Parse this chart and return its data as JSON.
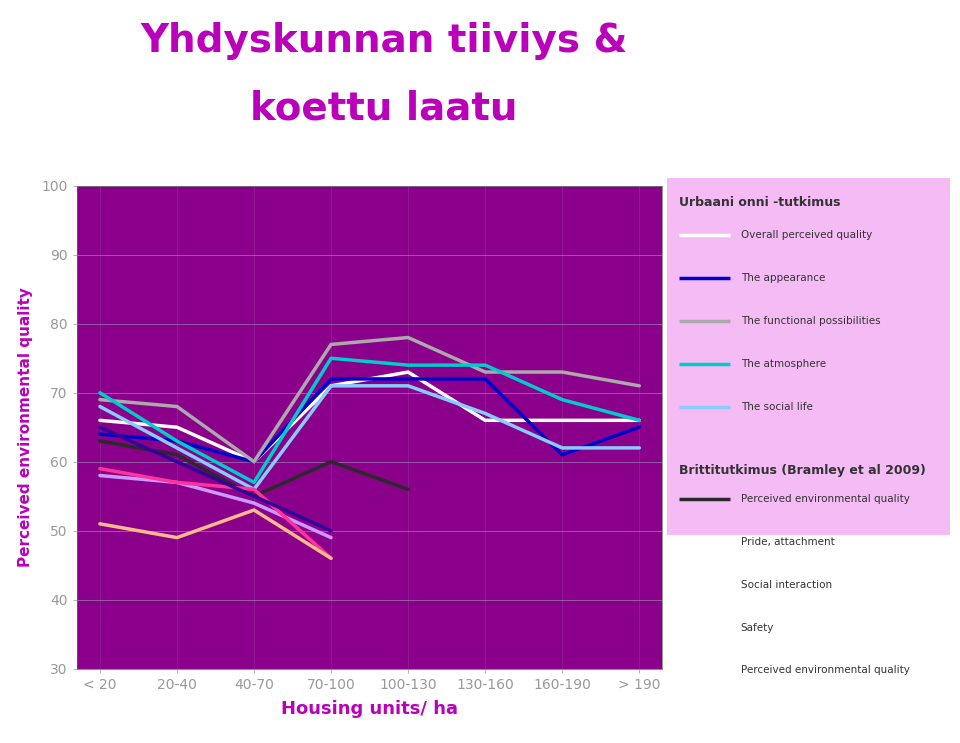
{
  "title_line1": "Yhdyskunnan tiiviys &",
  "title_line2": "koettu laatu",
  "title_color": "#bb00bb",
  "xlabel": "Housing units/ ha",
  "xlabel_color": "#bb00bb",
  "ylabel": "Perceived environmental quality",
  "ylabel_color": "#bb00bb",
  "bg_color": "#8b008b",
  "fig_bg_color": "#ffffff",
  "ylim": [
    30,
    100
  ],
  "yticks": [
    30,
    40,
    50,
    60,
    70,
    80,
    90,
    100
  ],
  "xtick_labels": [
    "< 20",
    "20-40",
    "40-70",
    "70-100",
    "100-130",
    "130-160",
    "160-190",
    "> 190"
  ],
  "grid_color": "#9999bb",
  "tick_label_color": "#cccccc",
  "series": [
    {
      "name": "Overall perceived quality",
      "color": "#ffffff",
      "linewidth": 2.5,
      "data": [
        66,
        65,
        60,
        71,
        73,
        66,
        66,
        66
      ],
      "group": "urbaani"
    },
    {
      "name": "The appearance",
      "color": "#0000cc",
      "linewidth": 2.5,
      "data": [
        64,
        63,
        60,
        72,
        72,
        72,
        61,
        65
      ],
      "group": "urbaani"
    },
    {
      "name": "The functional possibilities",
      "color": "#aaaaaa",
      "linewidth": 2.5,
      "data": [
        69,
        68,
        60,
        77,
        78,
        73,
        73,
        71
      ],
      "group": "urbaani"
    },
    {
      "name": "The atmosphere",
      "color": "#00cccc",
      "linewidth": 2.5,
      "data": [
        70,
        63,
        57,
        75,
        74,
        74,
        69,
        66
      ],
      "group": "urbaani"
    },
    {
      "name": "The social life",
      "color": "#88ccff",
      "linewidth": 2.5,
      "data": [
        68,
        62,
        56,
        71,
        71,
        67,
        62,
        62
      ],
      "group": "urbaani"
    },
    {
      "name": "Perceived environmental quality",
      "color": "#2a2a2a",
      "linewidth": 2.5,
      "data": [
        63,
        61,
        55,
        60,
        56,
        null,
        null,
        null
      ],
      "group": "bramley"
    },
    {
      "name": "Pride, attachment",
      "color": "#cc99ff",
      "linewidth": 2.5,
      "data": [
        58,
        57,
        54,
        49,
        null,
        null,
        null,
        null
      ],
      "group": "bramley"
    },
    {
      "name": "Social interaction",
      "color": "#ff3399",
      "linewidth": 2.5,
      "data": [
        59,
        57,
        56,
        46,
        null,
        null,
        null,
        null
      ],
      "group": "bramley"
    },
    {
      "name": "Safety",
      "color": "#330099",
      "linewidth": 2.5,
      "data": [
        65,
        60,
        55,
        50,
        null,
        null,
        null,
        null
      ],
      "group": "bramley"
    },
    {
      "name": "Perceived environmental quality",
      "color": "#ffbb88",
      "linewidth": 2.5,
      "data": [
        51,
        49,
        53,
        46,
        null,
        null,
        null,
        null
      ],
      "group": "bramley2"
    }
  ],
  "legend_bg": "#f5bbf5",
  "legend_title1": "Urbaani onni -tutkimus",
  "legend_title2": "Brittitutkimus (Bramley et al 2009)",
  "legend_text_color": "#333333"
}
